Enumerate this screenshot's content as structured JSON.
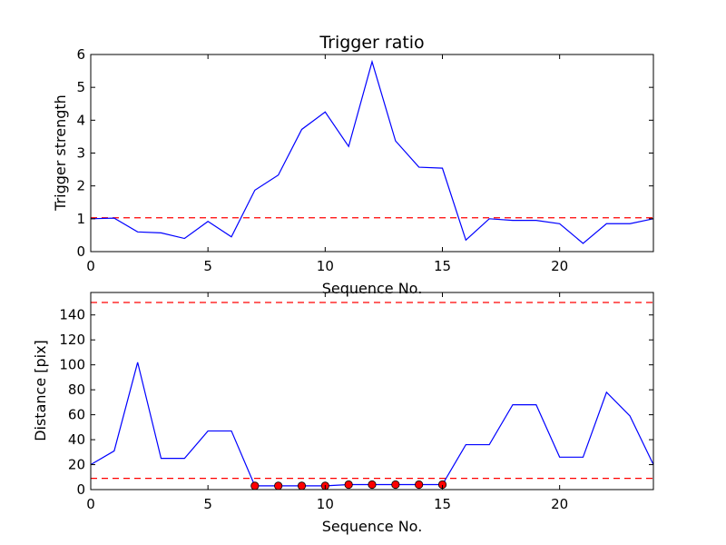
{
  "chart_data": [
    {
      "type": "line",
      "title": "Trigger ratio",
      "xlabel": "Sequence No.",
      "ylabel": "Trigger strength",
      "xlim": [
        0,
        24
      ],
      "ylim": [
        0,
        6
      ],
      "xticks": [
        "0",
        "5",
        "10",
        "15",
        "20"
      ],
      "yticks": [
        "0",
        "1",
        "2",
        "3",
        "4",
        "5",
        "6"
      ],
      "grid": false,
      "series": [
        {
          "style": "line",
          "color": "#0000ff",
          "x": [
            0,
            1,
            2,
            3,
            4,
            5,
            6,
            7,
            8,
            9,
            10,
            11,
            12,
            13,
            14,
            15,
            16,
            17,
            18,
            19,
            20,
            21,
            22,
            23,
            24
          ],
          "y": [
            1.0,
            1.02,
            0.6,
            0.57,
            0.4,
            0.92,
            0.45,
            1.87,
            2.33,
            3.72,
            4.25,
            3.2,
            5.78,
            3.37,
            2.57,
            2.54,
            0.35,
            1.0,
            0.95,
            0.95,
            0.85,
            0.25,
            0.85,
            0.85,
            1.0
          ]
        }
      ],
      "reference_lines": [
        {
          "y": 1.03,
          "color": "#ff0000",
          "style": "dashed"
        }
      ]
    },
    {
      "type": "line",
      "title": "",
      "xlabel": "Sequence No.",
      "ylabel": "Distance [pix]",
      "xlim": [
        0,
        24
      ],
      "ylim": [
        0,
        158
      ],
      "xticks": [
        "0",
        "5",
        "10",
        "15",
        "20"
      ],
      "yticks": [
        "0",
        "20",
        "40",
        "60",
        "80",
        "100",
        "120",
        "140"
      ],
      "grid": false,
      "series": [
        {
          "style": "line",
          "color": "#0000ff",
          "x": [
            0,
            1,
            2,
            3,
            4,
            5,
            6,
            7,
            8,
            9,
            10,
            11,
            12,
            13,
            14,
            15,
            16,
            17,
            18,
            19,
            20,
            21,
            22,
            23,
            24
          ],
          "y": [
            20,
            31,
            102,
            25,
            25,
            47,
            47,
            3,
            3,
            3,
            3,
            4,
            4,
            4,
            4,
            4,
            36,
            36,
            68,
            68,
            26,
            26,
            78,
            59,
            20
          ]
        },
        {
          "style": "markers",
          "color": "#ff0000",
          "x": [
            7,
            8,
            9,
            10,
            11,
            12,
            13,
            14,
            15
          ],
          "y": [
            3,
            3,
            3,
            3,
            4,
            4,
            4,
            4,
            4
          ]
        }
      ],
      "reference_lines": [
        {
          "y": 150,
          "color": "#ff0000",
          "style": "dashed"
        },
        {
          "y": 9,
          "color": "#ff0000",
          "style": "dashed"
        }
      ]
    }
  ]
}
